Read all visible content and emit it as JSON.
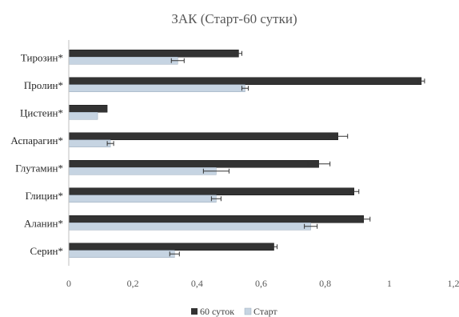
{
  "chart_data": {
    "type": "bar",
    "orientation": "horizontal",
    "title": "ЗАК (Старт-60 сутки)",
    "xlabel": "",
    "ylabel": "",
    "categories": [
      "Тирозин*",
      "Пролин*",
      "Цистеин*",
      "Аспарагин*",
      "Глутамин*",
      "Глицин*",
      "Аланин*",
      "Серин*"
    ],
    "series": [
      {
        "name": "60 суток",
        "color": "#333333",
        "values": [
          0.53,
          1.1,
          0.12,
          0.84,
          0.78,
          0.89,
          0.92,
          0.64
        ],
        "errors": [
          0.01,
          0.01,
          0.0,
          0.03,
          0.035,
          0.015,
          0.02,
          0.01
        ]
      },
      {
        "name": "Старт",
        "color": "#c6d4e2",
        "values": [
          0.34,
          0.55,
          0.09,
          0.13,
          0.46,
          0.46,
          0.755,
          0.33
        ],
        "errors": [
          0.02,
          0.01,
          0.0,
          0.01,
          0.04,
          0.015,
          0.02,
          0.015
        ]
      }
    ],
    "xlim": [
      0,
      1.2
    ],
    "xticks": [
      "0",
      "0,2",
      "0,4",
      "0,6",
      "0,8",
      "1",
      "1,2"
    ],
    "grid": false,
    "legend_position": "bottom"
  }
}
